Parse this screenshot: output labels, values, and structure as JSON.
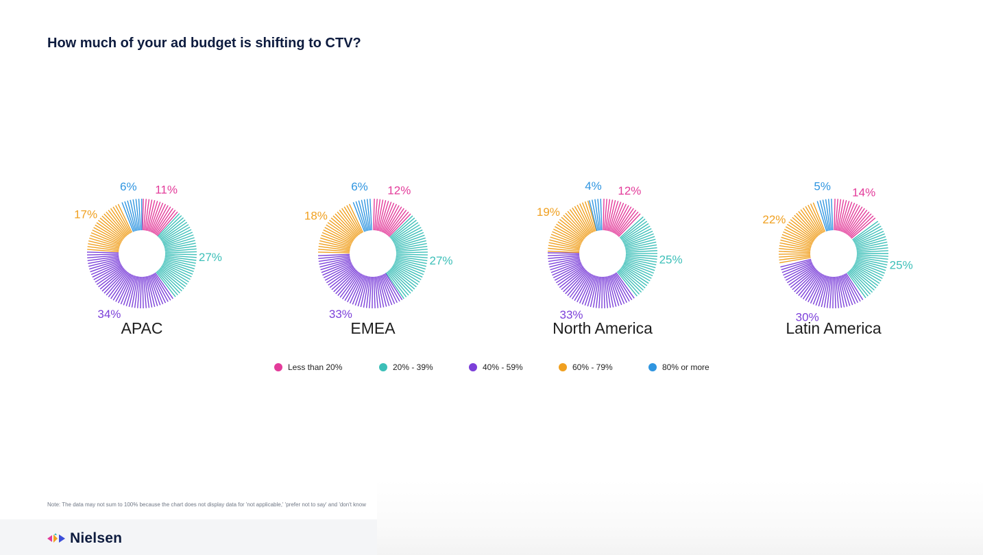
{
  "page": {
    "title": "How much of your ad budget is shifting to CTV?",
    "note": "Note: The data may not sum to 100% because the chart does not display data for 'not applicable,' 'prefer not to say' and 'don't know",
    "brand": "Nielsen"
  },
  "chart_data": {
    "type": "pie",
    "title": "How much of your ad budget is shifting to CTV?",
    "legend_position": "bottom",
    "categories": [
      "Less than 20%",
      "20% - 39%",
      "40% - 59%",
      "60% - 79%",
      "80% or more"
    ],
    "colors": [
      "#e33b9a",
      "#3cbfb8",
      "#7b3fd9",
      "#f0a020",
      "#2f95e0"
    ],
    "charts": [
      {
        "region": "APAC",
        "values": [
          11,
          27,
          34,
          17,
          6
        ],
        "labels": [
          "11%",
          "27%",
          "34%",
          "17%",
          "6%"
        ]
      },
      {
        "region": "EMEA",
        "values": [
          12,
          27,
          33,
          18,
          6
        ],
        "labels": [
          "12%",
          "27%",
          "33%",
          "18%",
          "6%"
        ]
      },
      {
        "region": "North America",
        "values": [
          12,
          25,
          33,
          19,
          4
        ],
        "labels": [
          "12%",
          "25%",
          "33%",
          "19%",
          "4%"
        ]
      },
      {
        "region": "Latin America",
        "values": [
          14,
          25,
          30,
          22,
          5
        ],
        "labels": [
          "14%",
          "25%",
          "30%",
          "22%",
          "5%"
        ]
      }
    ]
  }
}
